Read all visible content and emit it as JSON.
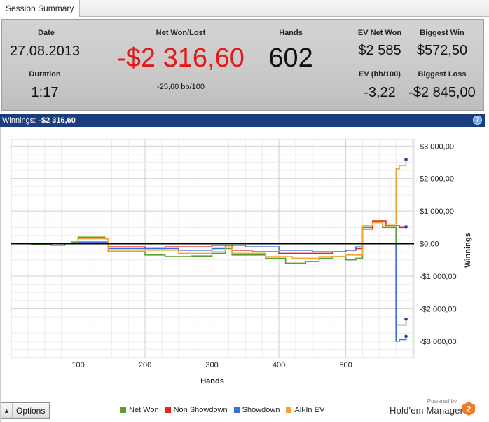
{
  "tab": {
    "label": "Session Summary"
  },
  "summary": {
    "date_label": "Date",
    "date_value": "27.08.2013",
    "duration_label": "Duration",
    "duration_value": "1:17",
    "net_label": "Net Won/Lost",
    "net_value": "-$2 316,60",
    "net_bb": "-25,60 bb/100",
    "hands_label": "Hands",
    "hands_value": "602",
    "ev_net_label": "EV Net Won",
    "ev_net_value": "$2 585",
    "biggest_win_label": "Biggest Win",
    "biggest_win_value": "$572,50",
    "ev_bb_label": "EV (bb/100)",
    "ev_bb_value": "-3,22",
    "biggest_loss_label": "Biggest Loss",
    "biggest_loss_value": "-$2 845,00"
  },
  "winnings_bar": {
    "label": "Winnings:",
    "amount": "-$2 316,60",
    "help": "?"
  },
  "colors": {
    "net_won": "#5aa02c",
    "non_showdown": "#e8231f",
    "showdown": "#3a6fe3",
    "all_in_ev": "#f5a333",
    "negative": "#e21a1a",
    "header_blue": "#1a3e7d"
  },
  "chart_data": {
    "type": "line",
    "xlabel": "Hands",
    "ylabel": "Winnings",
    "xlim": [
      0,
      602
    ],
    "ylim": [
      -3500,
      3200
    ],
    "x_ticks": [
      100,
      200,
      300,
      400,
      500
    ],
    "x_tick_labels": [
      "100",
      "200",
      "300",
      "400",
      "500"
    ],
    "y_ticks": [
      3000,
      2000,
      1000,
      0,
      -1000,
      -2000,
      -3000
    ],
    "y_tick_labels": [
      "$3 000,00",
      "$2 000,00",
      "$1 000,00",
      "$0,00",
      "-$1 000,00",
      "-$2 000,00",
      "-$3 000,00"
    ],
    "grid": true,
    "legend_position": "bottom",
    "series": [
      {
        "name": "Net Won",
        "color": "#5aa02c",
        "x": [
          0,
          30,
          60,
          80,
          90,
          100,
          140,
          145,
          190,
          200,
          230,
          270,
          300,
          320,
          330,
          380,
          410,
          440,
          460,
          480,
          500,
          515,
          525,
          540,
          555,
          570,
          575,
          580,
          590
        ],
        "y": [
          0,
          -30,
          -50,
          0,
          50,
          200,
          150,
          -250,
          -250,
          -350,
          -400,
          -380,
          -300,
          -150,
          -350,
          -450,
          -600,
          -550,
          -450,
          -400,
          -500,
          -450,
          500,
          650,
          500,
          500,
          -2500,
          -2500,
          -2320
        ]
      },
      {
        "name": "Non Showdown",
        "color": "#e8231f",
        "x": [
          0,
          100,
          140,
          145,
          200,
          230,
          300,
          330,
          360,
          400,
          440,
          480,
          500,
          515,
          525,
          540,
          560,
          575,
          580,
          590
        ],
        "y": [
          0,
          0,
          0,
          -100,
          -150,
          -100,
          -50,
          -200,
          -250,
          -300,
          -300,
          -250,
          -200,
          -150,
          450,
          700,
          550,
          550,
          500,
          520
        ]
      },
      {
        "name": "Showdown",
        "color": "#3a6fe3",
        "x": [
          0,
          80,
          100,
          140,
          145,
          200,
          250,
          300,
          320,
          350,
          400,
          450,
          500,
          515,
          525,
          560,
          570,
          575,
          580,
          590
        ],
        "y": [
          0,
          0,
          50,
          50,
          -150,
          -150,
          -200,
          -150,
          -50,
          -100,
          -200,
          -250,
          -200,
          -100,
          0,
          0,
          0,
          -3000,
          -2950,
          -2850
        ]
      },
      {
        "name": "All-In EV",
        "color": "#f5a333",
        "x": [
          0,
          100,
          140,
          145,
          200,
          250,
          300,
          320,
          330,
          380,
          420,
          460,
          500,
          515,
          525,
          540,
          555,
          570,
          575,
          580,
          590
        ],
        "y": [
          0,
          150,
          150,
          -200,
          -200,
          -300,
          -250,
          -100,
          -300,
          -400,
          -450,
          -400,
          -350,
          -350,
          550,
          650,
          600,
          600,
          2300,
          2400,
          2585
        ]
      }
    ]
  },
  "bottom": {
    "options_label": "Options",
    "legend": [
      {
        "label": "Net Won",
        "color": "#5aa02c"
      },
      {
        "label": "Non Showdown",
        "color": "#e8231f"
      },
      {
        "label": "Showdown",
        "color": "#3a6fe3"
      },
      {
        "label": "All-In EV",
        "color": "#f5a333"
      }
    ],
    "powered_by": "Powered by",
    "brand_name": "Hold'em Manager",
    "brand_number": "2"
  }
}
